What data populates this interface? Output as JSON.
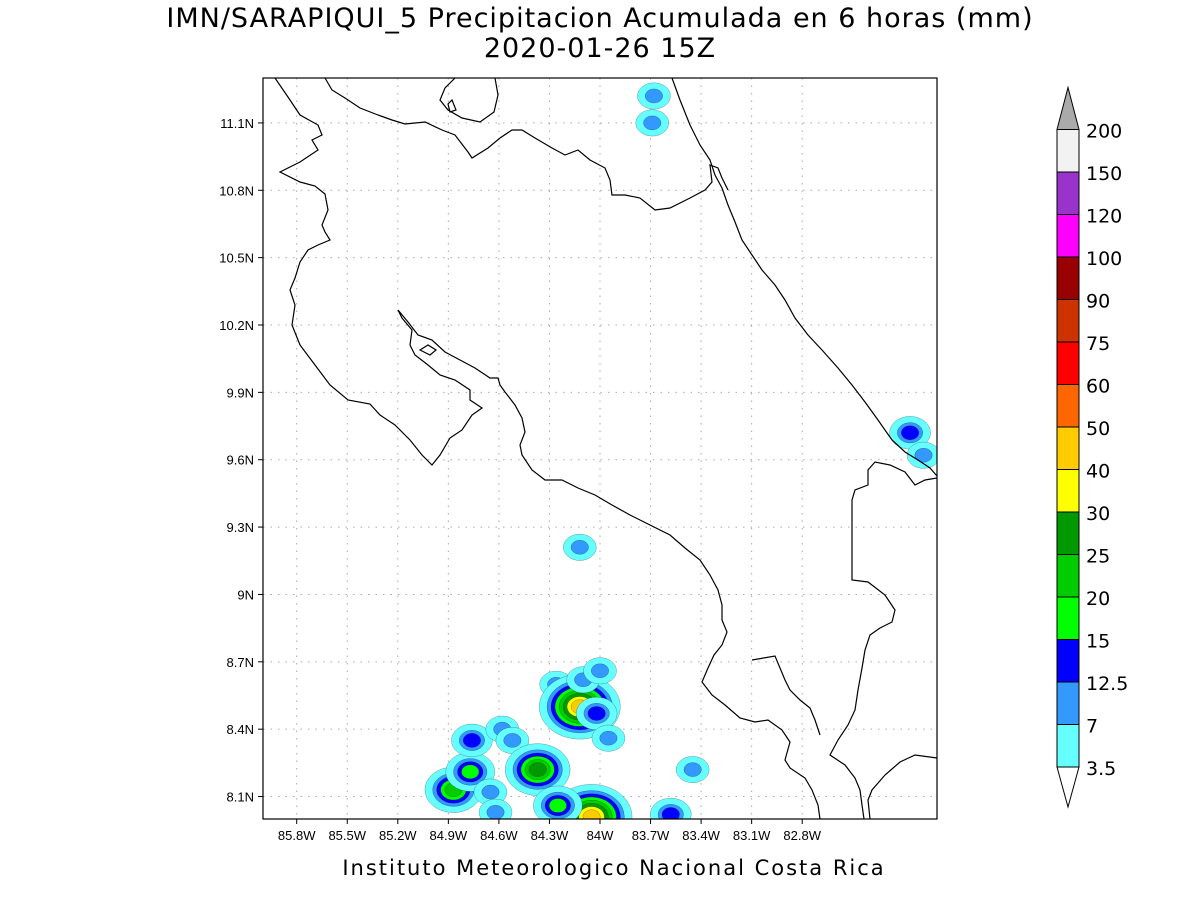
{
  "title": "IMN/SARAPIQUI_5 Precipitacion Acumulada en 6 horas (mm)",
  "subtitle": "2020-01-26 15Z",
  "footer": "Instituto Meteorologico Nacional Costa Rica",
  "map": {
    "lon_range": [
      -86.0,
      -82.0
    ],
    "lat_range": [
      8.0,
      11.3
    ],
    "lat_ticks": [
      {
        "value": 11.1,
        "label": "11.1N"
      },
      {
        "value": 10.8,
        "label": "10.8N"
      },
      {
        "value": 10.5,
        "label": "10.5N"
      },
      {
        "value": 10.2,
        "label": "10.2N"
      },
      {
        "value": 9.9,
        "label": "9.9N"
      },
      {
        "value": 9.6,
        "label": "9.6N"
      },
      {
        "value": 9.3,
        "label": "9.3N"
      },
      {
        "value": 9.0,
        "label": "9N"
      },
      {
        "value": 8.7,
        "label": "8.7N"
      },
      {
        "value": 8.4,
        "label": "8.4N"
      },
      {
        "value": 8.1,
        "label": "8.1N"
      }
    ],
    "lon_ticks": [
      {
        "value": -85.8,
        "label": "85.8W"
      },
      {
        "value": -85.5,
        "label": "85.5W"
      },
      {
        "value": -85.2,
        "label": "85.2W"
      },
      {
        "value": -84.9,
        "label": "84.9W"
      },
      {
        "value": -84.6,
        "label": "84.6W"
      },
      {
        "value": -84.3,
        "label": "84.3W"
      },
      {
        "value": -84.0,
        "label": "84W"
      },
      {
        "value": -83.7,
        "label": "83.7W"
      },
      {
        "value": -83.4,
        "label": "83.4W"
      },
      {
        "value": -83.1,
        "label": "83.1W"
      },
      {
        "value": -82.8,
        "label": "82.8W"
      }
    ],
    "grid": true,
    "grid_style": "dotted"
  },
  "colorbar": {
    "levels": [
      "3.5",
      "7",
      "12.5",
      "15",
      "20",
      "25",
      "30",
      "40",
      "50",
      "60",
      "75",
      "90",
      "100",
      "120",
      "150",
      "200"
    ],
    "colors": [
      "#66ffff",
      "#3399ff",
      "#0000ff",
      "#00ff00",
      "#00cc00",
      "#009900",
      "#ffff00",
      "#ffcc00",
      "#ff6600",
      "#ff0000",
      "#cc3300",
      "#990000",
      "#ff00ff",
      "#9933cc",
      "#f2f2f2"
    ],
    "under_color": "#ffffff",
    "over_color": "#aaaaaa"
  },
  "precip_cells": [
    {
      "lon": -84.87,
      "lat": 8.13,
      "level": 4
    },
    {
      "lon": -84.77,
      "lat": 8.21,
      "level": 3
    },
    {
      "lon": -84.76,
      "lat": 8.35,
      "level": 2
    },
    {
      "lon": -84.65,
      "lat": 8.12,
      "level": 1
    },
    {
      "lon": -84.62,
      "lat": 8.03,
      "level": 1
    },
    {
      "lon": -84.58,
      "lat": 8.4,
      "level": 1
    },
    {
      "lon": -84.52,
      "lat": 8.35,
      "level": 1
    },
    {
      "lon": -84.37,
      "lat": 8.22,
      "level": 5
    },
    {
      "lon": -84.26,
      "lat": 8.6,
      "level": 1
    },
    {
      "lon": -84.12,
      "lat": 8.5,
      "level": 7
    },
    {
      "lon": -84.1,
      "lat": 8.62,
      "level": 1
    },
    {
      "lon": -84.02,
      "lat": 8.47,
      "level": 2
    },
    {
      "lon": -84.0,
      "lat": 8.66,
      "level": 1
    },
    {
      "lon": -84.05,
      "lat": 8.01,
      "level": 7
    },
    {
      "lon": -84.25,
      "lat": 8.06,
      "level": 3
    },
    {
      "lon": -83.95,
      "lat": 8.36,
      "level": 1
    },
    {
      "lon": -83.58,
      "lat": 8.02,
      "level": 2
    },
    {
      "lon": -83.45,
      "lat": 8.22,
      "level": 1
    },
    {
      "lon": -84.12,
      "lat": 9.21,
      "level": 1
    },
    {
      "lon": -83.68,
      "lat": 11.22,
      "level": 1
    },
    {
      "lon": -83.69,
      "lat": 11.1,
      "level": 1
    },
    {
      "lon": -82.16,
      "lat": 9.72,
      "level": 2
    },
    {
      "lon": -82.08,
      "lat": 9.62,
      "level": 1
    }
  ]
}
